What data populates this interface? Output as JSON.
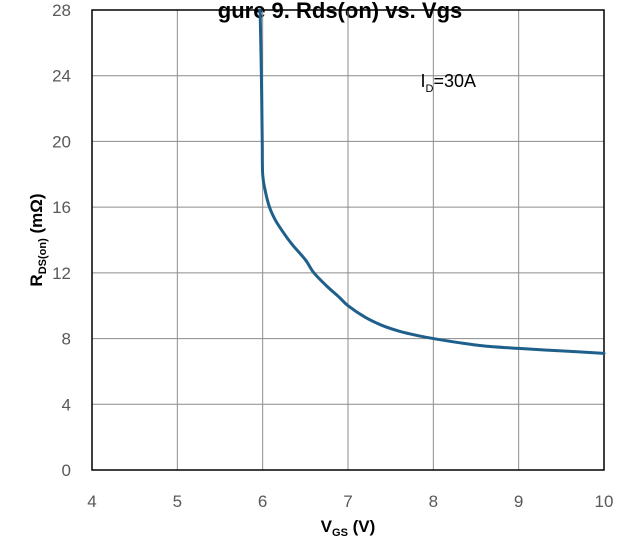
{
  "chart_data": {
    "type": "line",
    "title_fragment": "gure 9. Rds(on) vs. Vgs",
    "xlabel": {
      "main": "V",
      "sub": "GS",
      "suffix": " (V)"
    },
    "ylabel": {
      "main": "R",
      "sub": "DS(on)",
      "suffix": " (mΩ)"
    },
    "xlim": [
      4,
      10
    ],
    "ylim": [
      0,
      28
    ],
    "xticks": [
      "4",
      "5",
      "6",
      "7",
      "8",
      "9",
      "10"
    ],
    "yticks": [
      "0",
      "4",
      "8",
      "12",
      "16",
      "20",
      "24",
      "28"
    ],
    "grid": true,
    "annotation": {
      "main": "I",
      "sub": "D",
      "suffix": "=30A",
      "x": 7.85,
      "y": 23.3
    },
    "line_color": "#1f5f8b",
    "series": [
      {
        "x": [
          5.97,
          5.985,
          5.995,
          6.0,
          6.03,
          6.08,
          6.15,
          6.25,
          6.35,
          6.5,
          6.6,
          6.75,
          6.9,
          7.0,
          7.2,
          7.4,
          7.6,
          7.8,
          8.0,
          8.3,
          8.6,
          9.0,
          9.5,
          10.0
        ],
        "y": [
          28.0,
          24.0,
          20.0,
          18.0,
          17.0,
          16.0,
          15.2,
          14.4,
          13.7,
          12.8,
          12.0,
          11.2,
          10.5,
          10.0,
          9.3,
          8.8,
          8.45,
          8.2,
          8.0,
          7.75,
          7.55,
          7.4,
          7.25,
          7.1
        ]
      }
    ]
  }
}
